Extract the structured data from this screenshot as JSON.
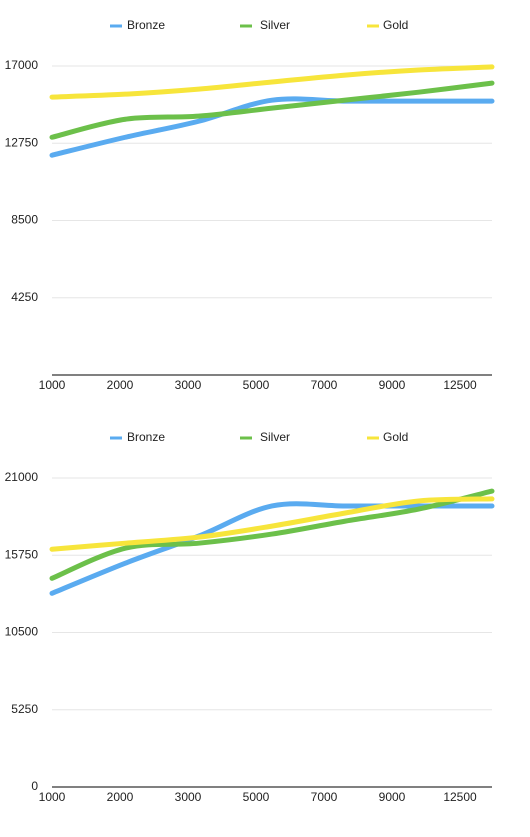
{
  "chart_data": [
    {
      "type": "line",
      "categories": [
        "1000",
        "2000",
        "3000",
        "5000",
        "7000",
        "9000",
        "12500"
      ],
      "series": [
        {
          "name": "Bronze",
          "color": "#5aabf0",
          "values": [
            12090,
            13080,
            13960,
            15120,
            15070,
            15070,
            15070
          ]
        },
        {
          "name": "Silver",
          "color": "#6cc04a",
          "values": [
            13080,
            14070,
            14240,
            14680,
            15120,
            15560,
            16060
          ]
        },
        {
          "name": "Gold",
          "color": "#f7e53b",
          "values": [
            15290,
            15450,
            15730,
            16120,
            16500,
            16780,
            16950
          ]
        }
      ],
      "ylim": [
        0,
        17000
      ],
      "yticks": [
        4250,
        8500,
        12750,
        17000
      ],
      "grid": true,
      "legend": "top"
    },
    {
      "type": "line",
      "categories": [
        "1000",
        "2000",
        "3000",
        "5000",
        "7000",
        "9000",
        "12500"
      ],
      "series": [
        {
          "name": "Bronze",
          "color": "#5aabf0",
          "values": [
            13160,
            15210,
            17050,
            19100,
            19100,
            19100,
            19100
          ]
        },
        {
          "name": "Silver",
          "color": "#6cc04a",
          "values": [
            14180,
            16230,
            16570,
            17190,
            18070,
            18890,
            20110
          ]
        },
        {
          "name": "Gold",
          "color": "#f7e53b",
          "values": [
            16160,
            16570,
            16980,
            17730,
            18620,
            19440,
            19580
          ]
        }
      ],
      "ylim": [
        0,
        21000
      ],
      "yticks": [
        0,
        5250,
        10500,
        15750,
        21000
      ],
      "grid": true,
      "legend": "top"
    }
  ]
}
